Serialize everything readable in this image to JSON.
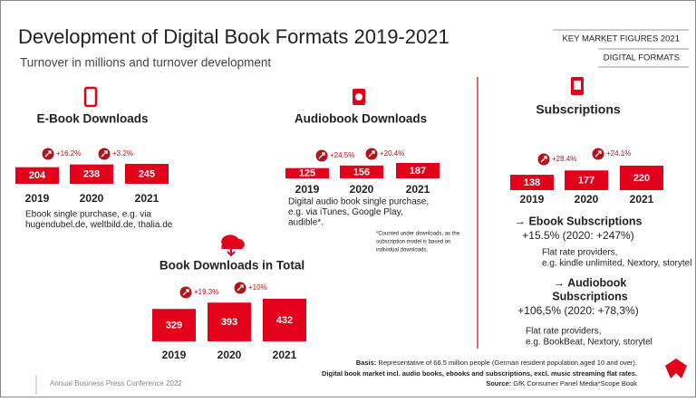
{
  "header": {
    "title": "Development of Digital Book Formats 2019-2021",
    "subtitle": "Turnover in millions and turnover development",
    "tag_top": "KEY MARKET FIGURES 2021",
    "tag_bottom": "DIGITAL FORMATS"
  },
  "panels": [
    {
      "title": "E-Book Downloads",
      "years": [
        "2019",
        "2020",
        "2021"
      ],
      "values": [
        204,
        238,
        245
      ],
      "growth": [
        "+16.2%",
        "+3.2%"
      ],
      "description": [
        "Ebook single purchase, e.g. via",
        "hugendubel.de,  weltbild.de,  thalia.de"
      ]
    },
    {
      "title": "Audiobook Downloads",
      "years": [
        "2019",
        "2020",
        "2021"
      ],
      "values": [
        125,
        156,
        187
      ],
      "growth": [
        "+24.5%",
        "+20.4%"
      ],
      "description": [
        "Digital audio book single purchase,",
        "e.g. via iTunes, Google Play,",
        "audible*."
      ]
    },
    {
      "title": "Book Downloads in Total",
      "years": [
        "2019",
        "2020",
        "2021"
      ],
      "values": [
        329,
        393,
        432
      ],
      "growth": [
        "+19.3%",
        "+10%"
      ],
      "description": []
    },
    {
      "title": "Subscriptions",
      "years": [
        "2019",
        "2020",
        "2021"
      ],
      "values": [
        138,
        177,
        220
      ],
      "growth": [
        "+28.4%",
        "+24.1%"
      ],
      "description": []
    }
  ],
  "note": [
    "*Counted under downloads, as the",
    "subscription model is based on",
    "individual downloads."
  ],
  "subscription_details": {
    "ebook_title": "→ Ebook Subscriptions",
    "ebook_growth": "+15.5% (2020: +247%)",
    "ebook_text": [
      "Flat rate providers,",
      "e.g. kindle unlimited, Nextory, storytel"
    ],
    "audio_title": [
      "→ Audiobook",
      "Subscriptions"
    ],
    "audio_growth": "+106,5% (2020: +78,3%)",
    "audio_text": [
      "Flat rate providers,",
      "e.g. BookBeat, Nextory, storytel"
    ]
  },
  "footer": {
    "event": "Annual Business Press Conference  2022",
    "basis_label": "Basis:",
    "basis_text": "Representative of 66.5 million people (German resident population aged 10 and over).",
    "market_text": "Digital book market incl. audio books, ebooks and subscriptions,  excl. music streaming flat rates.",
    "source_label": "Source:",
    "source_text": "GfK Consumer Panel Media*Scope Book"
  }
}
